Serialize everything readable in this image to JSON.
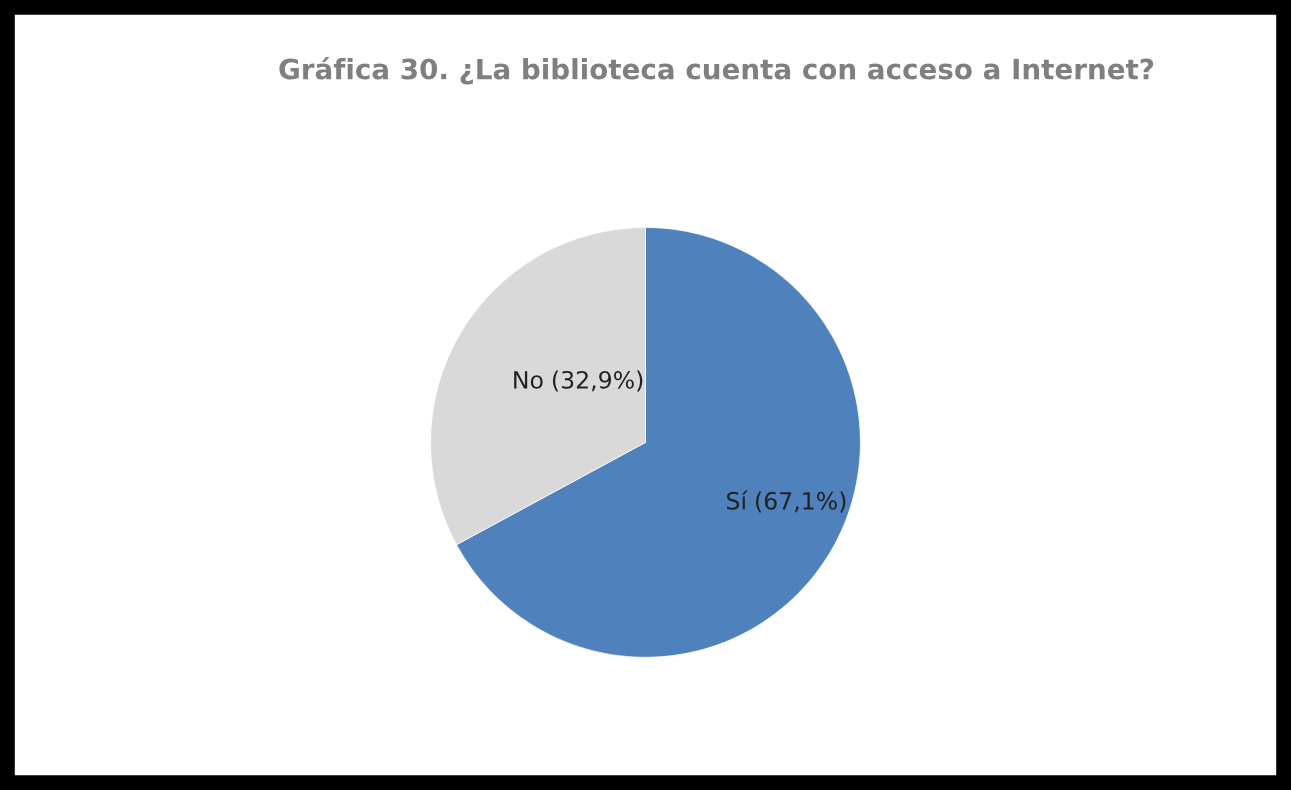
{
  "chart_data": {
    "type": "pie",
    "title": "Gráfica 30. ¿La biblioteca cuenta con acceso a Internet?",
    "categories": [
      "Sí",
      "No"
    ],
    "values": [
      67.1,
      32.9
    ],
    "colors": [
      "#4f81bd",
      "#d9d9d9"
    ],
    "value_labels": [
      "(67,1%)",
      "(32,9%)"
    ],
    "legend": false
  }
}
